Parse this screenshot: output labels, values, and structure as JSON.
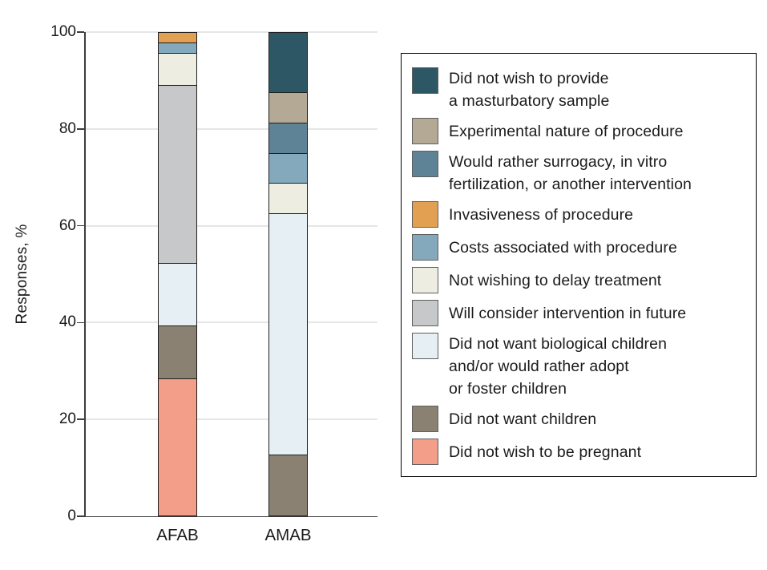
{
  "chart_data": {
    "type": "stacked-bar",
    "ylabel": "Responses, %",
    "ylim": [
      0,
      100
    ],
    "yticks": [
      0,
      20,
      40,
      60,
      80,
      100
    ],
    "grid": "horizontal",
    "categories": [
      "AFAB",
      "AMAB"
    ],
    "stack_order_bottom_to_top": [
      "Did not wish to be pregnant",
      "Did not want children",
      "Did not want biological children and/or would rather adopt or foster children",
      "Will consider intervention in future",
      "Not wishing to delay treatment",
      "Costs associated with procedure",
      "Invasiveness of procedure",
      "Would rather surrogacy, in vitro fertilization, or another intervention",
      "Experimental nature of procedure",
      "Did not wish to provide a masturbatory sample"
    ],
    "series": [
      {
        "name": "Did not wish to be pregnant",
        "color": "#F29E89",
        "values": [
          28.3,
          0
        ]
      },
      {
        "name": "Did not want children",
        "color": "#8A8172",
        "values": [
          10.9,
          12.5
        ]
      },
      {
        "name": "Did not want biological children and/or would rather adopt or foster children",
        "color": "#E6EFF4",
        "values": [
          13.0,
          50.0
        ]
      },
      {
        "name": "Will consider intervention in future",
        "color": "#C7C8CA",
        "values": [
          37.0,
          0
        ]
      },
      {
        "name": "Not wishing to delay treatment",
        "color": "#EEEDE1",
        "values": [
          6.5,
          6.25
        ]
      },
      {
        "name": "Costs associated with procedure",
        "color": "#85A9BC",
        "values": [
          2.2,
          6.25
        ]
      },
      {
        "name": "Invasiveness of procedure",
        "color": "#E2A052",
        "values": [
          2.2,
          0
        ]
      },
      {
        "name": "Would rather surrogacy, in vitro fertilization, or another intervention",
        "color": "#5E8396",
        "values": [
          0,
          6.25
        ]
      },
      {
        "name": "Experimental nature of procedure",
        "color": "#B3A995",
        "values": [
          0,
          6.25
        ]
      },
      {
        "name": "Did not wish to provide a masturbatory sample",
        "color": "#2E5765",
        "values": [
          0,
          12.5
        ]
      }
    ],
    "legend": {
      "position": "right",
      "items": [
        {
          "color": "#2E5765",
          "lines": [
            "Did not wish to provide",
            "a masturbatory sample"
          ]
        },
        {
          "color": "#B3A995",
          "lines": [
            "Experimental nature of procedure"
          ]
        },
        {
          "color": "#5E8396",
          "lines": [
            "Would rather surrogacy, in vitro",
            "fertilization, or another intervention"
          ]
        },
        {
          "color": "#E2A052",
          "lines": [
            "Invasiveness of procedure"
          ]
        },
        {
          "color": "#85A9BC",
          "lines": [
            "Costs associated with procedure"
          ]
        },
        {
          "color": "#EEEDE1",
          "lines": [
            "Not wishing to delay treatment"
          ]
        },
        {
          "color": "#C7C8CA",
          "lines": [
            "Will consider intervention in future"
          ]
        },
        {
          "color": "#E6EFF4",
          "lines": [
            "Did not want biological children",
            "and/or would rather adopt",
            "or foster children"
          ]
        },
        {
          "color": "#8A8172",
          "lines": [
            "Did not want children"
          ]
        },
        {
          "color": "#F29E89",
          "lines": [
            "Did not wish to be pregnant"
          ]
        }
      ]
    }
  }
}
